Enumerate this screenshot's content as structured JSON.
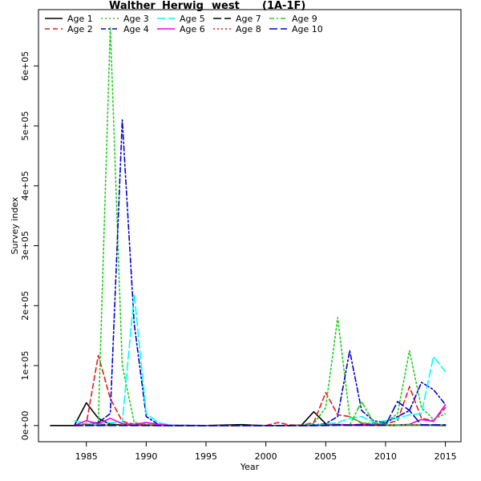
{
  "chart_data": {
    "type": "line",
    "title_parts": [
      "Walther",
      "Herwig",
      "west",
      "(1A-1F)"
    ],
    "xlabel": "Year",
    "ylabel": "Survey index",
    "xlim": [
      1981,
      2016.3
    ],
    "ylim": [
      -27000,
      694000
    ],
    "x_ticks": [
      1985,
      1990,
      1995,
      2000,
      2005,
      2010,
      2015
    ],
    "x_tick_labels": [
      "1985",
      "1990",
      "1995",
      "2000",
      "2005",
      "2010",
      "2015"
    ],
    "y_ticks": [
      0,
      100000,
      200000,
      300000,
      400000,
      500000,
      600000
    ],
    "y_tick_labels": [
      "0e+00",
      "1e+05",
      "2e+05",
      "3e+05",
      "4e+05",
      "5e+05",
      "6e+05"
    ],
    "legend_position": "top-left",
    "series": [
      {
        "name": "Age 1",
        "color": "#000000",
        "dash": "solid",
        "points": [
          [
            1982,
            0
          ],
          [
            1984,
            0
          ],
          [
            1985,
            38000
          ],
          [
            1986,
            12000
          ],
          [
            1987,
            2000
          ],
          [
            1988,
            1000
          ],
          [
            1989,
            500
          ],
          [
            1990,
            500
          ],
          [
            1991,
            0
          ],
          [
            1992,
            0
          ],
          [
            1995,
            0
          ],
          [
            1998,
            1500
          ],
          [
            1999,
            500
          ],
          [
            2000,
            0
          ],
          [
            2001,
            0
          ],
          [
            2002,
            0
          ],
          [
            2003,
            1000
          ],
          [
            2004,
            23000
          ],
          [
            2005,
            3000
          ],
          [
            2006,
            1000
          ],
          [
            2007,
            500
          ],
          [
            2008,
            500
          ],
          [
            2009,
            500
          ],
          [
            2010,
            500
          ],
          [
            2011,
            500
          ],
          [
            2012,
            500
          ],
          [
            2013,
            500
          ],
          [
            2014,
            500
          ],
          [
            2015,
            0
          ]
        ]
      },
      {
        "name": "Age 2",
        "color": "#e41a1c",
        "dash": "dash",
        "points": [
          [
            1984,
            0
          ],
          [
            1985,
            3000
          ],
          [
            1986,
            117000
          ],
          [
            1987,
            45000
          ],
          [
            1988,
            7000
          ],
          [
            1989,
            2000
          ],
          [
            1990,
            1000
          ],
          [
            1991,
            500
          ],
          [
            1992,
            0
          ],
          [
            1995,
            0
          ],
          [
            1998,
            0
          ],
          [
            1999,
            0
          ],
          [
            2000,
            0
          ],
          [
            2001,
            5000
          ],
          [
            2002,
            1000
          ],
          [
            2003,
            500
          ],
          [
            2004,
            5000
          ],
          [
            2005,
            55000
          ],
          [
            2006,
            18000
          ],
          [
            2007,
            15000
          ],
          [
            2008,
            4000
          ],
          [
            2009,
            2000
          ],
          [
            2010,
            3000
          ],
          [
            2011,
            8000
          ],
          [
            2012,
            65000
          ],
          [
            2013,
            12000
          ],
          [
            2014,
            8000
          ],
          [
            2015,
            30000
          ]
        ]
      },
      {
        "name": "Age 3",
        "color": "#22cc22",
        "dash": "dot",
        "points": [
          [
            1984,
            0
          ],
          [
            1985,
            2000
          ],
          [
            1986,
            6000
          ],
          [
            1987,
            665000
          ],
          [
            1988,
            100000
          ],
          [
            1989,
            5000
          ],
          [
            1990,
            2000
          ],
          [
            1991,
            1000
          ],
          [
            1992,
            0
          ],
          [
            1995,
            0
          ],
          [
            1998,
            0
          ],
          [
            1999,
            0
          ],
          [
            2000,
            0
          ],
          [
            2001,
            0
          ],
          [
            2002,
            0
          ],
          [
            2003,
            500
          ],
          [
            2004,
            3000
          ],
          [
            2005,
            30000
          ],
          [
            2006,
            180000
          ],
          [
            2007,
            15000
          ],
          [
            2008,
            5000
          ],
          [
            2009,
            3000
          ],
          [
            2010,
            5000
          ],
          [
            2011,
            20000
          ],
          [
            2012,
            125000
          ],
          [
            2013,
            30000
          ],
          [
            2014,
            10000
          ],
          [
            2015,
            20000
          ]
        ]
      },
      {
        "name": "Age 4",
        "color": "#0000cc",
        "dash": "dashdot",
        "points": [
          [
            1984,
            0
          ],
          [
            1985,
            1000
          ],
          [
            1986,
            5000
          ],
          [
            1987,
            20000
          ],
          [
            1988,
            510000
          ],
          [
            1989,
            170000
          ],
          [
            1990,
            15000
          ],
          [
            1991,
            2000
          ],
          [
            1992,
            0
          ],
          [
            1995,
            0
          ],
          [
            1998,
            0
          ],
          [
            1999,
            0
          ],
          [
            2000,
            0
          ],
          [
            2001,
            0
          ],
          [
            2002,
            0
          ],
          [
            2003,
            0
          ],
          [
            2004,
            1000
          ],
          [
            2005,
            3000
          ],
          [
            2006,
            15000
          ],
          [
            2007,
            125000
          ],
          [
            2008,
            25000
          ],
          [
            2009,
            8000
          ],
          [
            2010,
            5000
          ],
          [
            2011,
            15000
          ],
          [
            2012,
            25000
          ],
          [
            2013,
            72000
          ],
          [
            2014,
            60000
          ],
          [
            2015,
            35000
          ]
        ]
      },
      {
        "name": "Age 5",
        "color": "#00ffff",
        "dash": "longdash",
        "points": [
          [
            1984,
            8000
          ],
          [
            1985,
            3000
          ],
          [
            1986,
            2000
          ],
          [
            1987,
            5000
          ],
          [
            1988,
            5000
          ],
          [
            1989,
            220000
          ],
          [
            1990,
            20000
          ],
          [
            1991,
            5000
          ],
          [
            1992,
            1000
          ],
          [
            1995,
            0
          ],
          [
            1998,
            0
          ],
          [
            1999,
            0
          ],
          [
            2000,
            0
          ],
          [
            2001,
            0
          ],
          [
            2002,
            0
          ],
          [
            2003,
            0
          ],
          [
            2004,
            500
          ],
          [
            2005,
            2000
          ],
          [
            2006,
            5000
          ],
          [
            2007,
            12000
          ],
          [
            2008,
            15000
          ],
          [
            2009,
            5000
          ],
          [
            2010,
            8000
          ],
          [
            2011,
            12000
          ],
          [
            2012,
            18000
          ],
          [
            2013,
            20000
          ],
          [
            2014,
            115000
          ],
          [
            2015,
            90000
          ]
        ]
      },
      {
        "name": "Age 6",
        "color": "#ee00ee",
        "dash": "solid",
        "points": [
          [
            1984,
            0
          ],
          [
            1985,
            8000
          ],
          [
            1986,
            3000
          ],
          [
            1987,
            12000
          ],
          [
            1988,
            3000
          ],
          [
            1989,
            2000
          ],
          [
            1990,
            5000
          ],
          [
            1991,
            2000
          ],
          [
            1992,
            500
          ],
          [
            1995,
            0
          ],
          [
            1998,
            0
          ],
          [
            1999,
            0
          ],
          [
            2000,
            0
          ],
          [
            2001,
            0
          ],
          [
            2002,
            0
          ],
          [
            2003,
            0
          ],
          [
            2004,
            0
          ],
          [
            2005,
            500
          ],
          [
            2006,
            2000
          ],
          [
            2007,
            1000
          ],
          [
            2008,
            2000
          ],
          [
            2009,
            1000
          ],
          [
            2010,
            1000
          ],
          [
            2011,
            1000
          ],
          [
            2012,
            2000
          ],
          [
            2013,
            10000
          ],
          [
            2014,
            7000
          ],
          [
            2015,
            35000
          ]
        ]
      },
      {
        "name": "Age 7",
        "color": "#000000",
        "dash": "longdash",
        "points": [
          [
            1984,
            0
          ],
          [
            1985,
            1000
          ],
          [
            1986,
            500
          ],
          [
            1987,
            2000
          ],
          [
            1988,
            500
          ],
          [
            1989,
            500
          ],
          [
            1990,
            500
          ],
          [
            1991,
            0
          ],
          [
            1992,
            0
          ],
          [
            1995,
            0
          ],
          [
            1998,
            0
          ],
          [
            1999,
            0
          ],
          [
            2000,
            0
          ],
          [
            2001,
            0
          ],
          [
            2002,
            0
          ],
          [
            2003,
            0
          ],
          [
            2004,
            0
          ],
          [
            2005,
            1000
          ],
          [
            2006,
            1000
          ],
          [
            2007,
            1000
          ],
          [
            2008,
            1000
          ],
          [
            2009,
            500
          ],
          [
            2010,
            500
          ],
          [
            2011,
            500
          ],
          [
            2012,
            1000
          ],
          [
            2013,
            1000
          ],
          [
            2014,
            1000
          ],
          [
            2015,
            1000
          ]
        ]
      },
      {
        "name": "Age 8",
        "color": "#e41a1c",
        "dash": "dot",
        "points": [
          [
            1984,
            0
          ],
          [
            1985,
            500
          ],
          [
            1986,
            500
          ],
          [
            1987,
            500
          ],
          [
            1988,
            500
          ],
          [
            1989,
            500
          ],
          [
            1990,
            500
          ],
          [
            1991,
            0
          ],
          [
            1992,
            0
          ],
          [
            1995,
            0
          ],
          [
            1998,
            0
          ],
          [
            1999,
            0
          ],
          [
            2000,
            0
          ],
          [
            2001,
            0
          ],
          [
            2002,
            0
          ],
          [
            2003,
            0
          ],
          [
            2004,
            0
          ],
          [
            2005,
            500
          ],
          [
            2006,
            500
          ],
          [
            2007,
            500
          ],
          [
            2008,
            500
          ],
          [
            2009,
            500
          ],
          [
            2010,
            500
          ],
          [
            2011,
            500
          ],
          [
            2012,
            500
          ],
          [
            2013,
            500
          ],
          [
            2014,
            500
          ],
          [
            2015,
            500
          ]
        ]
      },
      {
        "name": "Age 9",
        "color": "#22cc22",
        "dash": "dashdot",
        "points": [
          [
            1984,
            0
          ],
          [
            1985,
            0
          ],
          [
            1986,
            0
          ],
          [
            1987,
            500
          ],
          [
            1988,
            500
          ],
          [
            1989,
            500
          ],
          [
            1990,
            0
          ],
          [
            1991,
            0
          ],
          [
            1992,
            0
          ],
          [
            1995,
            0
          ],
          [
            1998,
            0
          ],
          [
            1999,
            0
          ],
          [
            2000,
            0
          ],
          [
            2001,
            0
          ],
          [
            2002,
            0
          ],
          [
            2003,
            0
          ],
          [
            2004,
            0
          ],
          [
            2005,
            500
          ],
          [
            2006,
            500
          ],
          [
            2007,
            500
          ],
          [
            2008,
            40000
          ],
          [
            2009,
            5000
          ],
          [
            2010,
            1000
          ],
          [
            2011,
            1000
          ],
          [
            2012,
            1000
          ],
          [
            2013,
            1000
          ],
          [
            2014,
            1000
          ],
          [
            2015,
            1000
          ]
        ]
      },
      {
        "name": "Age 10",
        "color": "#0000cc",
        "dash": "longdash",
        "points": [
          [
            1984,
            0
          ],
          [
            1985,
            0
          ],
          [
            1986,
            0
          ],
          [
            1987,
            0
          ],
          [
            1988,
            0
          ],
          [
            1989,
            0
          ],
          [
            1990,
            0
          ],
          [
            1991,
            0
          ],
          [
            1992,
            0
          ],
          [
            1995,
            0
          ],
          [
            1998,
            0
          ],
          [
            1999,
            0
          ],
          [
            2000,
            0
          ],
          [
            2001,
            0
          ],
          [
            2002,
            0
          ],
          [
            2003,
            0
          ],
          [
            2004,
            0
          ],
          [
            2005,
            0
          ],
          [
            2006,
            500
          ],
          [
            2007,
            500
          ],
          [
            2008,
            500
          ],
          [
            2009,
            500
          ],
          [
            2010,
            500
          ],
          [
            2011,
            40000
          ],
          [
            2012,
            25000
          ],
          [
            2013,
            1000
          ],
          [
            2014,
            1000
          ],
          [
            2015,
            1000
          ]
        ]
      }
    ]
  }
}
